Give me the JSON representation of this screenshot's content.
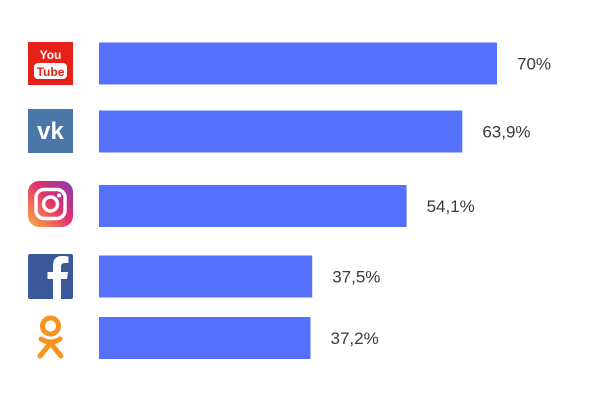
{
  "chart_data": {
    "type": "bar",
    "orientation": "horizontal",
    "categories": [
      "YouTube",
      "VK",
      "Instagram",
      "Facebook",
      "Odnoklassniki"
    ],
    "values": [
      70,
      63.9,
      54.1,
      37.5,
      37.2
    ],
    "labels": [
      "70%",
      "63,9%",
      "54,1%",
      "37,5%",
      "37,2%"
    ],
    "icons": [
      "youtube-logo-icon",
      "vk-logo-icon",
      "instagram-logo-icon",
      "facebook-logo-icon",
      "odnoklassniki-logo-icon"
    ],
    "xlim": [
      0,
      100
    ],
    "grid": false,
    "bar_color": "#5470fc"
  },
  "icon_colors": {
    "youtube": "#e62117",
    "vk": "#4a76a8",
    "instagram_start": "#fcaf45",
    "instagram_mid": "#e1306c",
    "instagram_end": "#833ab4",
    "facebook": "#3b5998",
    "odnoklassniki": "#f7931e"
  }
}
